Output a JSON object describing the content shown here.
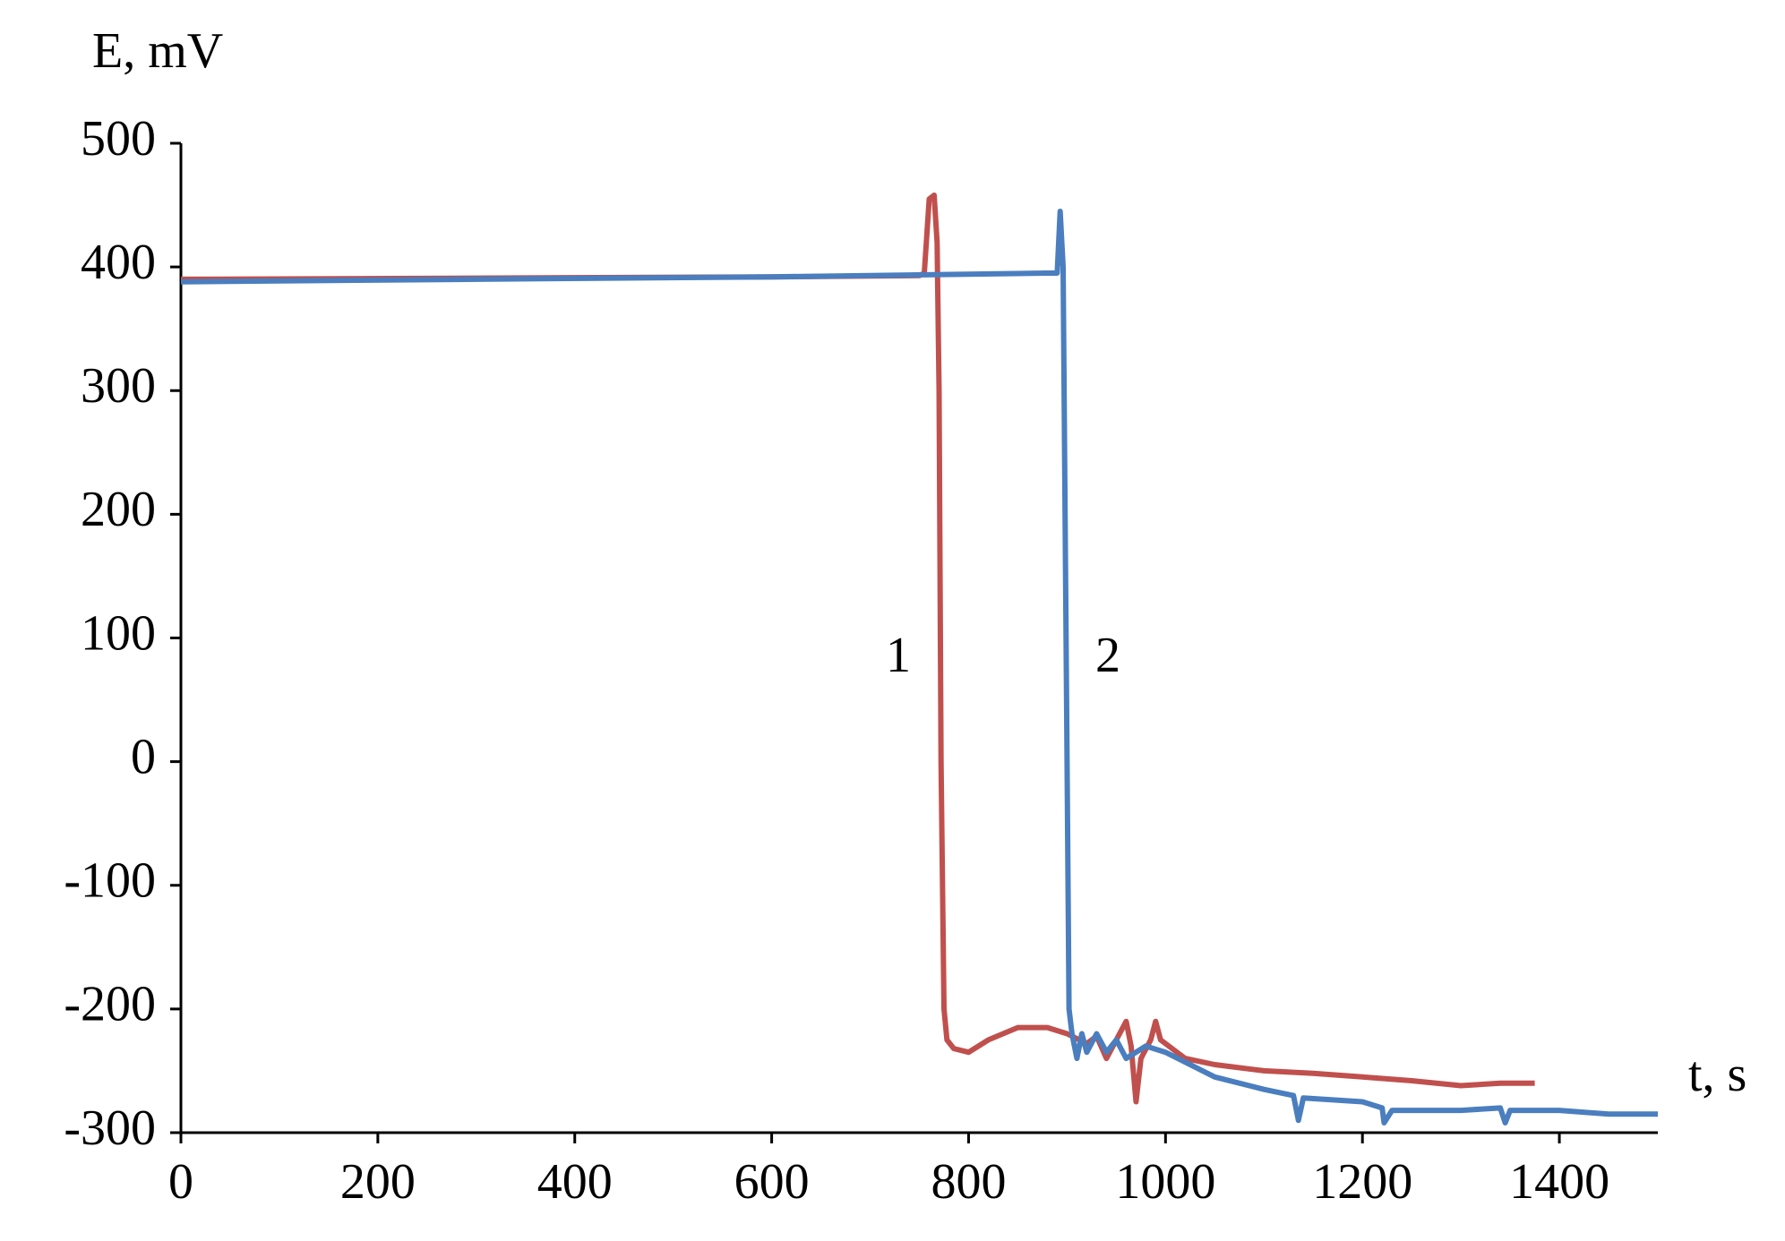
{
  "chart_data": {
    "type": "line",
    "y_label": "E, mV",
    "x_label": "t, s",
    "annotations": [
      "1",
      "2"
    ],
    "xlim": [
      0,
      1500
    ],
    "xticks": [
      0,
      200,
      400,
      600,
      800,
      1000,
      1200,
      1400
    ],
    "ylim": [
      -300,
      500
    ],
    "yticks": [
      -300,
      -200,
      -100,
      0,
      100,
      200,
      300,
      400,
      500
    ],
    "grid": false,
    "series": [
      {
        "color": "#c0504d",
        "x": [
          0,
          300,
          600,
          750,
          755,
          760,
          765,
          768,
          770,
          772,
          775,
          778,
          785,
          800,
          820,
          850,
          880,
          900,
          920,
          930,
          940,
          950,
          960,
          965,
          970,
          975,
          985,
          990,
          995,
          1000,
          1020,
          1050,
          1100,
          1150,
          1200,
          1250,
          1300,
          1340,
          1375
        ],
        "values": [
          390,
          391,
          392,
          393,
          395,
          455,
          458,
          420,
          300,
          0,
          -200,
          -225,
          -232,
          -235,
          -225,
          -215,
          -215,
          -220,
          -228,
          -222,
          -240,
          -225,
          -210,
          -230,
          -275,
          -240,
          -225,
          -210,
          -225,
          -228,
          -240,
          -245,
          -250,
          -252,
          -255,
          -258,
          -262,
          -260,
          -260
        ]
      },
      {
        "color": "#4a7ebf",
        "x": [
          0,
          300,
          600,
          880,
          890,
          893,
          896,
          898,
          900,
          902,
          905,
          910,
          915,
          920,
          930,
          940,
          950,
          960,
          980,
          1000,
          1050,
          1100,
          1130,
          1135,
          1140,
          1200,
          1220,
          1222,
          1230,
          1300,
          1340,
          1345,
          1350,
          1400,
          1450,
          1500
        ],
        "values": [
          388,
          390,
          392,
          395,
          395,
          445,
          400,
          200,
          0,
          -200,
          -220,
          -240,
          -220,
          -235,
          -220,
          -235,
          -225,
          -240,
          -230,
          -235,
          -255,
          -265,
          -270,
          -290,
          -272,
          -275,
          -280,
          -292,
          -282,
          -282,
          -280,
          -292,
          -282,
          -282,
          -285,
          -285
        ]
      }
    ]
  }
}
